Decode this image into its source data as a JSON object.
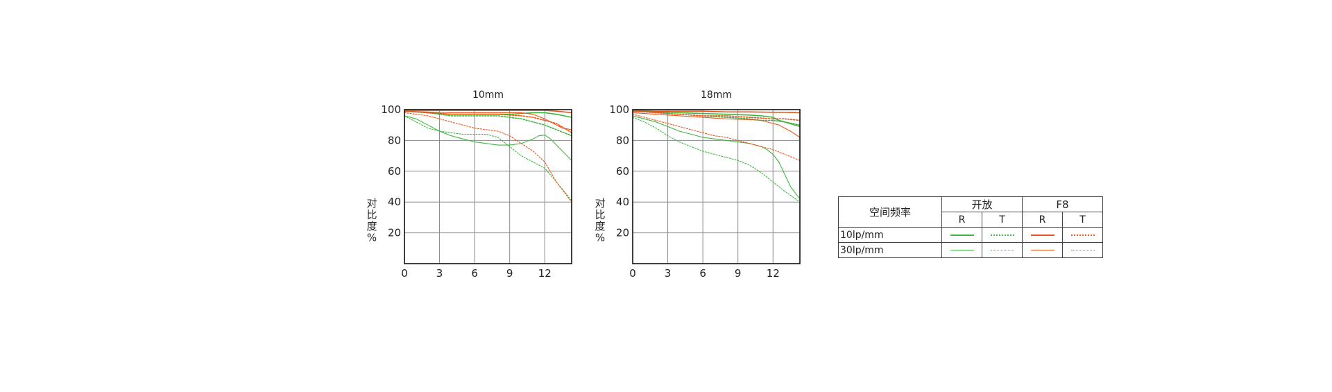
{
  "chart_data": [
    {
      "type": "line",
      "title": "10mm",
      "xlabel": "",
      "ylabel": "对比度%",
      "xlim": [
        0,
        14.3
      ],
      "ylim": [
        0,
        100
      ],
      "xticks": [
        0,
        3,
        6,
        9,
        12
      ],
      "yticks": [
        20,
        40,
        60,
        80,
        100
      ],
      "grid": true,
      "series": [
        {
          "group": "wide_open_10lp_R",
          "color": "#3fb63f",
          "style": "solid",
          "width": 1.6,
          "x": [
            0,
            2,
            4,
            6,
            8,
            9,
            10,
            11,
            12,
            13,
            14.3
          ],
          "y": [
            99,
            98,
            97,
            97,
            97,
            97,
            97.5,
            98,
            98,
            97,
            95
          ]
        },
        {
          "group": "wide_open_10lp_T",
          "color": "#3fb63f",
          "style": "dotted",
          "width": 1.6,
          "x": [
            0,
            2,
            4,
            6,
            8,
            9,
            10,
            11,
            12,
            13,
            14.3
          ],
          "y": [
            99,
            98,
            96,
            96,
            96,
            95,
            94,
            92,
            90,
            87,
            83
          ]
        },
        {
          "group": "wide_open_30lp_R",
          "color": "#3fb63f",
          "style": "solid",
          "width": 1.1,
          "x": [
            0,
            1,
            2,
            3,
            4,
            5,
            6,
            7,
            8,
            9,
            10,
            11,
            11.5,
            12,
            12.5,
            13,
            14.3
          ],
          "y": [
            96,
            94,
            90,
            86,
            83,
            81,
            79,
            78,
            77,
            77,
            78,
            81,
            83,
            83.5,
            81,
            77,
            67
          ]
        },
        {
          "group": "wide_open_30lp_T",
          "color": "#3fb63f",
          "style": "dotted",
          "width": 1.1,
          "x": [
            0,
            1,
            2,
            3,
            4,
            5,
            6,
            7,
            8,
            9,
            10,
            11,
            12,
            13,
            14.3
          ],
          "y": [
            96,
            92,
            88,
            86,
            85,
            84,
            84,
            84,
            82,
            76,
            70,
            66,
            62,
            53,
            41
          ]
        },
        {
          "group": "f8_10lp_R",
          "color": "#e8561c",
          "style": "solid",
          "width": 1.6,
          "x": [
            0,
            2,
            4,
            6,
            8,
            10,
            12,
            13,
            14.3
          ],
          "y": [
            99.5,
            99.5,
            99.5,
            99.5,
            99.5,
            99.5,
            99.5,
            99,
            98
          ]
        },
        {
          "group": "f8_10lp_T",
          "color": "#e8561c",
          "style": "dotted",
          "width": 1.6,
          "x": [
            0,
            2,
            4,
            6,
            8,
            10,
            11,
            12,
            13,
            14.3
          ],
          "y": [
            99,
            98,
            97,
            97,
            97,
            96,
            95,
            93,
            91,
            85
          ]
        },
        {
          "group": "f8_30lp_R",
          "color": "#e8561c",
          "style": "solid",
          "width": 1.1,
          "x": [
            0,
            2,
            4,
            6,
            8,
            10,
            11,
            12,
            12.5,
            13,
            13.5,
            14.3
          ],
          "y": [
            99,
            98.5,
            98,
            98,
            98,
            98,
            97,
            94,
            92,
            90,
            88,
            87
          ]
        },
        {
          "group": "f8_30lp_T",
          "color": "#e8561c",
          "style": "dotted",
          "width": 1.1,
          "x": [
            0,
            1,
            2,
            3,
            4,
            5,
            6,
            7,
            8,
            9,
            10,
            11,
            12,
            13,
            14.3
          ],
          "y": [
            98,
            97,
            96,
            94,
            92,
            90,
            88,
            87,
            86,
            83,
            78,
            73,
            66,
            53,
            40
          ]
        }
      ]
    },
    {
      "type": "line",
      "title": "18mm",
      "xlabel": "",
      "ylabel": "对比度%",
      "xlim": [
        0,
        14.3
      ],
      "ylim": [
        0,
        100
      ],
      "xticks": [
        0,
        3,
        6,
        9,
        12
      ],
      "yticks": [
        20,
        40,
        60,
        80,
        100
      ],
      "grid": true,
      "series": [
        {
          "group": "wide_open_10lp_R",
          "color": "#3fb63f",
          "style": "solid",
          "width": 1.6,
          "x": [
            0,
            2,
            4,
            6,
            8,
            10,
            11,
            12,
            12.5,
            13,
            14.3
          ],
          "y": [
            99,
            98.5,
            98,
            97.5,
            97,
            96.5,
            96,
            95,
            93,
            92,
            89
          ]
        },
        {
          "group": "wide_open_10lp_T",
          "color": "#3fb63f",
          "style": "dotted",
          "width": 1.6,
          "x": [
            0,
            2,
            4,
            6,
            8,
            10,
            11,
            12,
            13,
            14.3
          ],
          "y": [
            99,
            98,
            97,
            96,
            95,
            94,
            93,
            93,
            92,
            90
          ]
        },
        {
          "group": "wide_open_30lp_R",
          "color": "#3fb63f",
          "style": "solid",
          "width": 1.1,
          "x": [
            0,
            1,
            2,
            3,
            4,
            5,
            6,
            7,
            8,
            9,
            10,
            11,
            11.5,
            12,
            12.5,
            13,
            13.5,
            14.3
          ],
          "y": [
            96,
            94,
            92,
            89,
            86,
            84,
            82,
            81,
            80,
            79,
            78,
            76,
            74,
            71,
            66,
            58,
            50,
            42
          ]
        },
        {
          "group": "wide_open_30lp_T",
          "color": "#3fb63f",
          "style": "dotted",
          "width": 1.1,
          "x": [
            0,
            1,
            2,
            3,
            4,
            5,
            6,
            7,
            8,
            9,
            10,
            11,
            12,
            13,
            14.3
          ],
          "y": [
            95,
            92,
            88,
            83,
            79,
            76,
            73,
            71,
            69,
            67,
            64,
            59,
            53,
            47,
            40
          ]
        },
        {
          "group": "f8_10lp_R",
          "color": "#e8561c",
          "style": "solid",
          "width": 1.6,
          "x": [
            0,
            2,
            4,
            6,
            8,
            10,
            12,
            13,
            14.3
          ],
          "y": [
            99.5,
            99,
            99,
            99,
            98.5,
            98.5,
            98.3,
            98.2,
            98
          ]
        },
        {
          "group": "f8_10lp_T",
          "color": "#e8561c",
          "style": "dotted",
          "width": 1.6,
          "x": [
            0,
            2,
            4,
            6,
            8,
            10,
            12,
            13,
            14.3
          ],
          "y": [
            99,
            98,
            97,
            96,
            96,
            95,
            94,
            94,
            93
          ]
        },
        {
          "group": "f8_30lp_R",
          "color": "#e8561c",
          "style": "solid",
          "width": 1.1,
          "x": [
            0,
            2,
            4,
            6,
            8,
            10,
            11,
            12,
            12.5,
            13,
            13.5,
            14.3
          ],
          "y": [
            98,
            97,
            96,
            95,
            94,
            93.5,
            93,
            91,
            90,
            88,
            86,
            82
          ]
        },
        {
          "group": "f8_30lp_T",
          "color": "#e8561c",
          "style": "dotted",
          "width": 1.1,
          "x": [
            0,
            1,
            2,
            3,
            4,
            5,
            6,
            7,
            8,
            9,
            10,
            11,
            12,
            13,
            14.3
          ],
          "y": [
            97,
            95,
            93,
            91,
            89,
            87,
            85,
            83,
            82,
            80,
            78,
            76,
            74,
            71,
            67
          ]
        }
      ]
    }
  ],
  "legend": {
    "corner": "空间频率",
    "group1": "开放",
    "group2": "F8",
    "col_r": "R",
    "col_t": "T",
    "row1": "10lp/mm",
    "row2": "30lp/mm",
    "green": "#3fb63f",
    "orange": "#e8561c"
  }
}
